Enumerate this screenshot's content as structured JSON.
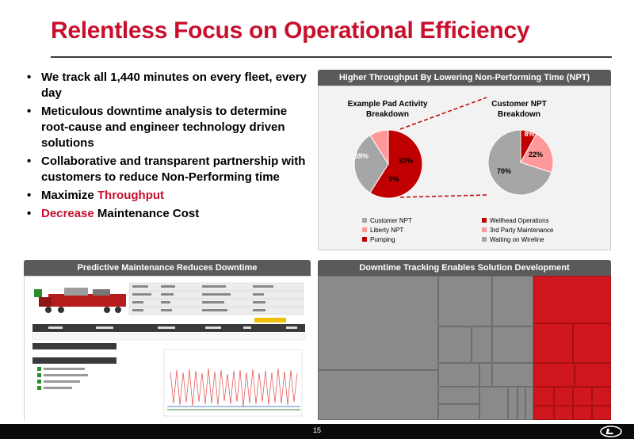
{
  "slide": {
    "title": "Relentless Focus on Operational Efficiency",
    "page_number": "15"
  },
  "bullets": [
    {
      "parts": [
        {
          "text": "We track all 1,440 minutes on every fleet, every day",
          "red": false
        }
      ]
    },
    {
      "parts": [
        {
          "text": "Meticulous downtime analysis to determine root-cause and engineer technology driven solutions",
          "red": false
        }
      ]
    },
    {
      "parts": [
        {
          "text": "Collaborative and transparent partnership with customers to reduce Non-Performing time",
          "red": false
        }
      ]
    },
    {
      "parts": [
        {
          "text": "Maximize ",
          "red": false
        },
        {
          "text": "Throughput",
          "red": true
        }
      ]
    },
    {
      "parts": [
        {
          "text": "Decrease",
          "red": true
        },
        {
          "text": " Maintenance Cost",
          "red": false
        }
      ]
    }
  ],
  "npt_panel": {
    "header": "Higher Throughput By Lowering Non-Performing Time (NPT)"
  },
  "pm_panel": {
    "header": "Predictive Maintenance Reduces Downtime"
  },
  "treemap_panel": {
    "header": "Downtime Tracking Enables Solution Development"
  },
  "chart_data": [
    {
      "type": "pie",
      "title": "Example Pad Activity Breakdown",
      "labels": [
        "Pumping",
        "Customer NPT",
        "Liberty NPT"
      ],
      "values": [
        59,
        32,
        9
      ],
      "data_labels": [
        "59%",
        "32%",
        "9%"
      ],
      "colors": [
        "#c00000",
        "#a6a6a6",
        "#ff9999"
      ],
      "legend": [
        "Customer NPT",
        "Liberty NPT",
        "Pumping"
      ],
      "legend_colors": [
        "#a6a6a6",
        "#ff9999",
        "#c00000"
      ],
      "legend_position": "bottom"
    },
    {
      "type": "pie",
      "title": "Customer NPT Breakdown",
      "labels": [
        "Wellhead Operations",
        "3rd Party Maintenance",
        "Waiting on Wireline"
      ],
      "values": [
        8,
        22,
        70
      ],
      "data_labels": [
        "8%",
        "22%",
        "70%"
      ],
      "colors": [
        "#c00000",
        "#ff9999",
        "#a6a6a6"
      ],
      "legend": [
        "Wellhead Operations",
        "3rd Party Maintenance",
        "Waiting on Wireline"
      ],
      "legend_colors": [
        "#c00000",
        "#ff9999",
        "#a6a6a6"
      ],
      "legend_position": "bottom"
    }
  ],
  "colors": {
    "brand_red": "#c8102e",
    "panel_header": "#5a5a5a",
    "footer": "#0a0a0a"
  }
}
